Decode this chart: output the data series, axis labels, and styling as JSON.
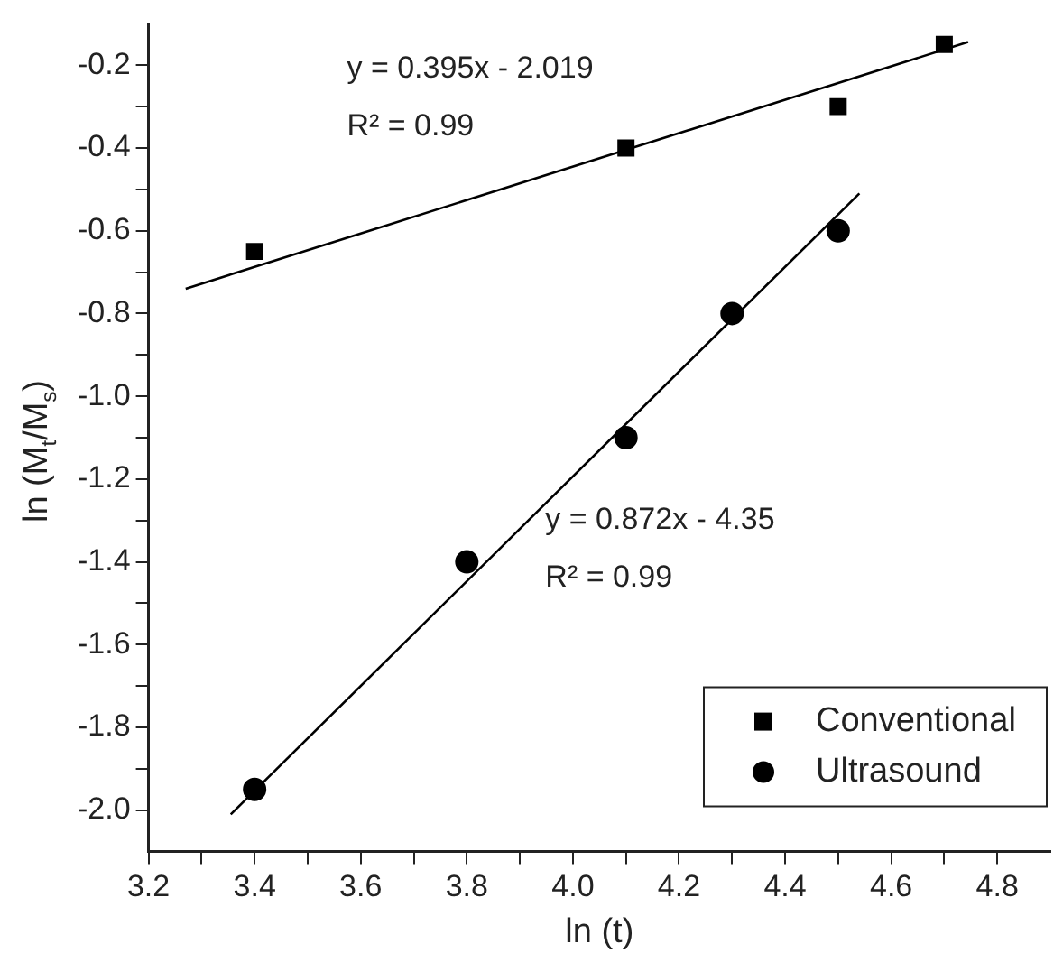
{
  "chart_data": {
    "type": "scatter",
    "xlabel": "ln (t)",
    "ylabel": "ln (M$_{t}$/M$_{s}$)",
    "xlim": [
      3.2,
      4.9
    ],
    "ylim": [
      -2.1,
      -0.1
    ],
    "xticks": [
      3.2,
      {
        "value": 3.3,
        "label": null
      },
      3.4,
      {
        "value": 3.5,
        "label": null
      },
      3.6,
      {
        "value": 3.7,
        "label": null
      },
      3.8,
      {
        "value": 3.9,
        "label": null
      },
      {
        "value": 4.0,
        "label": "4.0"
      },
      {
        "value": 4.1,
        "label": null
      },
      4.2,
      {
        "value": 4.3,
        "label": null
      },
      4.4,
      {
        "value": 4.5,
        "label": null
      },
      4.6,
      {
        "value": 4.7,
        "label": null
      },
      4.8
    ],
    "yticks": [
      {
        "value": -2.0,
        "label": "-2.0"
      },
      {
        "value": -1.9,
        "label": null
      },
      -1.8,
      {
        "value": -1.7,
        "label": null
      },
      -1.6,
      {
        "value": -1.5,
        "label": null
      },
      -1.4,
      {
        "value": -1.3,
        "label": null
      },
      -1.2,
      {
        "value": -1.1,
        "label": null
      },
      {
        "value": -1.0,
        "label": "-1.0"
      },
      {
        "value": -0.9,
        "label": null
      },
      -0.8,
      {
        "value": -0.7,
        "label": null
      },
      -0.6,
      {
        "value": -0.5,
        "label": null
      },
      -0.4,
      {
        "value": -0.3,
        "label": null
      },
      -0.2
    ],
    "grid": false,
    "legend": "bottom right",
    "annotations": [
      "y = 0.395x - 2.019",
      "R² = 0.99",
      "y = 0.872x - 4.35",
      "R² = 0.99"
    ],
    "series": [
      {
        "name": "Conventional",
        "color": "#000000",
        "marker": "square",
        "x": [
          3.4,
          4.1,
          4.5,
          4.7
        ],
        "values": [
          -0.65,
          -0.4,
          -0.3,
          -0.15
        ]
      },
      {
        "name": "Ultrasound",
        "color": "#000000",
        "marker": "circle",
        "x": [
          3.4,
          3.8,
          4.1,
          4.3,
          4.5
        ],
        "values": [
          -1.95,
          -1.4,
          -1.1,
          -0.8,
          -0.6
        ]
      },
      {
        "type": "line",
        "color": "#000000",
        "marker": "none",
        "x": [
          3.27,
          4.745
        ],
        "values": [
          -0.74,
          -0.144
        ]
      },
      {
        "type": "line",
        "color": "#000000",
        "marker": "none",
        "x": [
          3.355,
          4.54
        ],
        "values": [
          -2.01,
          -0.51
        ]
      }
    ]
  }
}
